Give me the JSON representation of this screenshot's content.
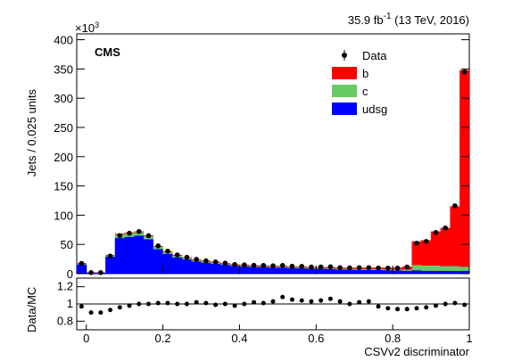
{
  "chart_data": {
    "type": "stacked_histogram",
    "title_parts": [
      "35.9 fb",
      "-1",
      " (13 TeV, 2016)"
    ],
    "experiment": "CMS",
    "y_multiplier_parts": [
      "×10",
      "3"
    ],
    "xlabel": "CSVv2 discriminator",
    "ylabel": "Jets / 0.025 units",
    "bins": [
      -0.025,
      0,
      0.025,
      0.05,
      0.075,
      0.1,
      0.125,
      0.15,
      0.175,
      0.2,
      0.225,
      0.25,
      0.275,
      0.3,
      0.325,
      0.35,
      0.375,
      0.4,
      0.425,
      0.45,
      0.475,
      0.5,
      0.525,
      0.55,
      0.575,
      0.6,
      0.625,
      0.65,
      0.675,
      0.7,
      0.725,
      0.75,
      0.775,
      0.8,
      0.825,
      0.85,
      0.875,
      0.9,
      0.925,
      0.95,
      0.975,
      1
    ],
    "xlim": [
      -0.025,
      1
    ],
    "xticks": [
      0,
      0.2,
      0.4,
      0.6,
      0.8,
      1
    ],
    "ylim": [
      0,
      410
    ],
    "yticks": [
      0,
      50,
      100,
      150,
      200,
      250,
      300,
      350,
      400
    ],
    "series": [
      {
        "name": "udsg",
        "color": "#0000ff",
        "values": [
          16,
          1.7,
          1.7,
          29,
          61,
          63,
          65,
          59,
          42,
          34,
          28,
          24.5,
          21,
          19,
          17,
          15.5,
          13.5,
          12.5,
          11.5,
          11.5,
          10.5,
          10.5,
          9.5,
          9.5,
          8.5,
          8.5,
          8,
          7,
          7,
          6.5,
          6.5,
          6.5,
          6,
          5.5,
          5,
          6,
          5,
          5,
          5,
          5,
          5
        ]
      },
      {
        "name": "c",
        "color": "#66cc66",
        "values": [
          1.5,
          0.2,
          0.2,
          2.5,
          6,
          6,
          6,
          5,
          4,
          3,
          3,
          2.5,
          2,
          2,
          2,
          1.5,
          1.5,
          1.5,
          1.5,
          1.5,
          1.5,
          1.5,
          1.5,
          1.5,
          1.5,
          1.5,
          1.5,
          1.5,
          1.5,
          1.5,
          1.5,
          1.5,
          1.5,
          1.5,
          2,
          9,
          9,
          9,
          8,
          8,
          7
        ]
      },
      {
        "name": "b",
        "color": "#ff0000",
        "values": [
          0.5,
          0.1,
          0.1,
          0.5,
          1,
          1,
          1,
          1,
          1,
          1,
          1,
          1,
          1,
          1,
          1,
          1,
          1,
          1,
          1,
          1,
          1,
          1,
          1,
          1,
          1,
          1,
          1.5,
          1.5,
          1.5,
          2,
          2,
          2,
          2.5,
          3,
          5,
          40,
          43,
          58,
          65,
          102,
          336
        ]
      }
    ],
    "data": {
      "name": "Data",
      "color": "#000000",
      "values": [
        17.5,
        1.8,
        1.8,
        30,
        65,
        69,
        72,
        65,
        47.5,
        38.5,
        32,
        28,
        24.5,
        22,
        20,
        18,
        15.7,
        15,
        14.3,
        14.1,
        13.4,
        14,
        12.6,
        12.5,
        11.3,
        11.4,
        11.7,
        10.3,
        10,
        10.2,
        10.3,
        9.7,
        9.5,
        9.4,
        11.3,
        52,
        55,
        70.5,
        78,
        116,
        345
      ]
    },
    "ratio": {
      "ylabel": "Data/MC",
      "ylim": [
        0.7,
        1.3
      ],
      "yticks": [
        0.8,
        1,
        1.2
      ],
      "values": [
        0.97,
        0.9,
        0.9,
        0.93,
        0.96,
        0.98,
        1.0,
        1.0,
        1.01,
        1.01,
        1.0,
        1.0,
        1.02,
        1.01,
        0.99,
        1.0,
        0.98,
        1.0,
        1.02,
        1.01,
        1.03,
        1.08,
        1.05,
        1.04,
        1.03,
        1.04,
        1.06,
        1.03,
        1.0,
        1.02,
        1.03,
        0.97,
        0.95,
        0.94,
        0.94,
        0.95,
        0.96,
        0.98,
        1.0,
        1.01,
        0.99
      ]
    }
  }
}
